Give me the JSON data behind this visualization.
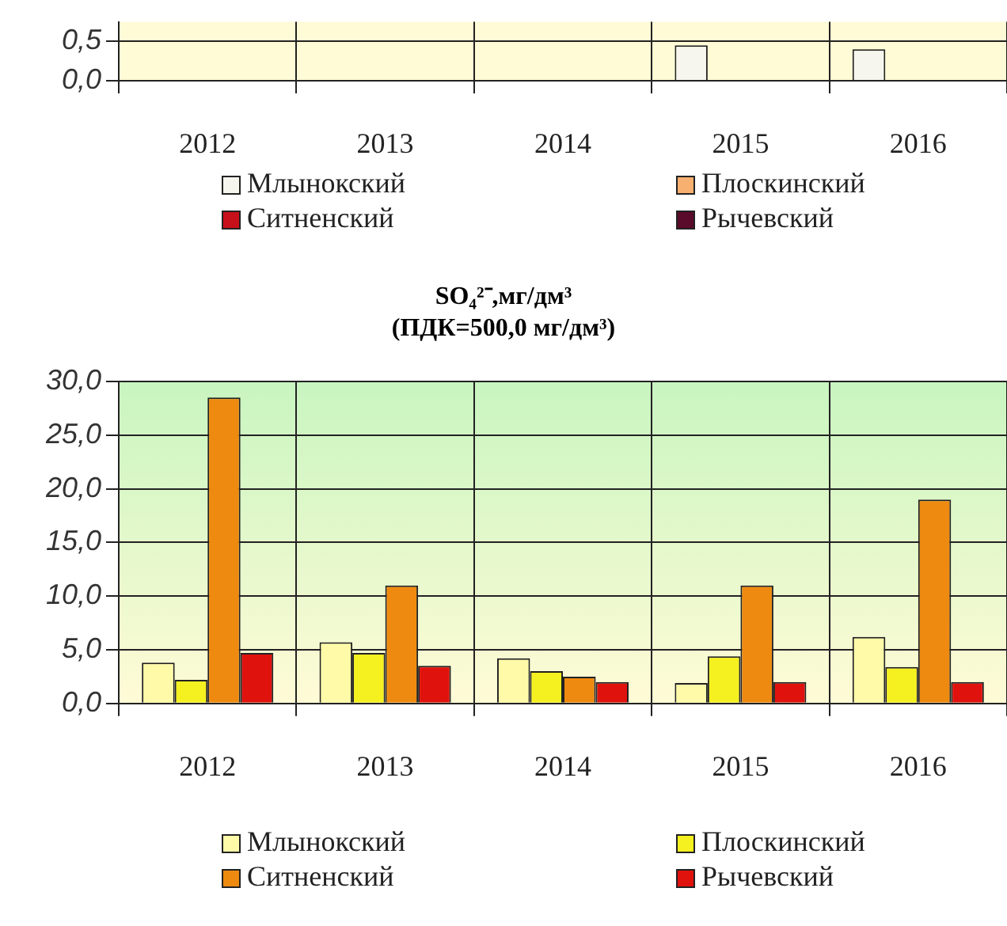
{
  "chart_data": [
    {
      "type": "bar",
      "categories": [
        "2012",
        "2013",
        "2014",
        "2015",
        "2016"
      ],
      "series": [
        {
          "name": "Млынокский",
          "color": "#f6f6ee",
          "values": [
            null,
            null,
            null,
            0.45,
            0.4
          ]
        },
        {
          "name": "Плоскинский",
          "color": "#f8b070",
          "values": [
            null,
            null,
            null,
            null,
            null
          ]
        },
        {
          "name": "Ситненский",
          "color": "#c8101a",
          "values": [
            null,
            null,
            null,
            null,
            null
          ]
        },
        {
          "name": "Рычевский",
          "color": "#5a0a2a",
          "values": [
            null,
            null,
            null,
            null,
            null
          ]
        }
      ],
      "ylim": [
        0,
        0.75
      ],
      "yticks": [
        {
          "value": 0,
          "label": "0,0"
        },
        {
          "value": 0.5,
          "label": "0,5"
        }
      ],
      "grid": true,
      "legend": "bottom"
    },
    {
      "type": "bar",
      "title": "SO₄²⁻,мг/дм³\n(ПДК=500,0 мг/дм³)",
      "categories": [
        "2012",
        "2013",
        "2014",
        "2015",
        "2016"
      ],
      "series": [
        {
          "name": "Млынокский",
          "color": "#fffaa8",
          "values": [
            3.8,
            5.7,
            4.2,
            1.9,
            6.2
          ]
        },
        {
          "name": "Плоскинский",
          "color": "#f5f020",
          "values": [
            2.2,
            4.7,
            3.0,
            4.4,
            3.4
          ]
        },
        {
          "name": "Ситненский",
          "color": "#ee8a10",
          "values": [
            28.5,
            11.0,
            2.5,
            11.0,
            19.0
          ]
        },
        {
          "name": "Рычевский",
          "color": "#e0120e",
          "values": [
            4.7,
            3.5,
            2.0,
            2.0,
            2.0
          ]
        }
      ],
      "ylim": [
        0,
        30
      ],
      "yticks": [
        {
          "value": 0,
          "label": "0,0"
        },
        {
          "value": 5,
          "label": "5,0"
        },
        {
          "value": 10,
          "label": "10,0"
        },
        {
          "value": 15,
          "label": "15,0"
        },
        {
          "value": 20,
          "label": "20,0"
        },
        {
          "value": 25,
          "label": "25,0"
        },
        {
          "value": 30,
          "label": "30,0"
        }
      ],
      "grid": true,
      "legend": "bottom"
    }
  ]
}
